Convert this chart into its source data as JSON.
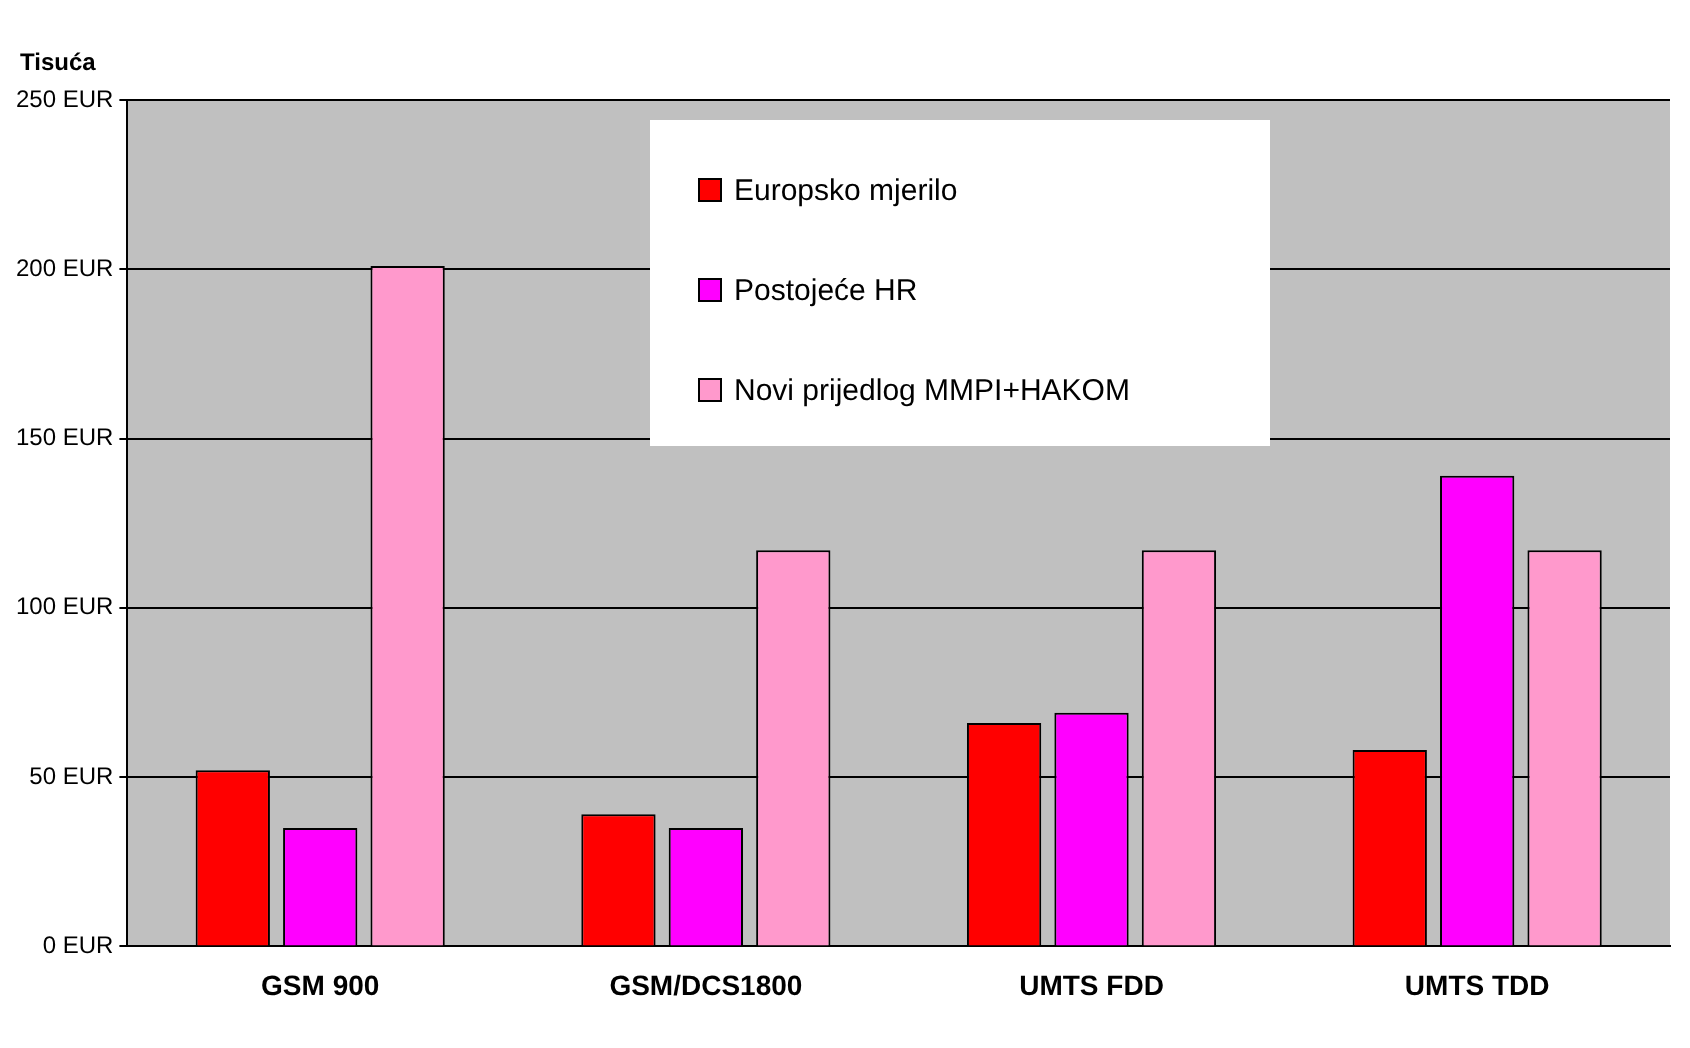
{
  "chart_data": {
    "type": "bar",
    "ylabel": "Tisuća",
    "categories": [
      "GSM 900",
      "GSM/DCS1800",
      "UMTS FDD",
      "UMTS TDD"
    ],
    "series": [
      {
        "name": "Europsko mjerilo",
        "color": "#ff0000",
        "values": [
          52,
          39,
          66,
          58
        ]
      },
      {
        "name": "Postojeće HR",
        "color": "#ff00ff",
        "values": [
          35,
          35,
          69,
          139
        ]
      },
      {
        "name": "Novi prijedlog MMPI+HAKOM",
        "color": "#ff99cc",
        "values": [
          201,
          117,
          117,
          117
        ]
      }
    ],
    "ylim": [
      0,
      250
    ],
    "yticks": [
      {
        "value": 0,
        "label": "0 EUR"
      },
      {
        "value": 50,
        "label": "50 EUR"
      },
      {
        "value": 100,
        "label": "100 EUR"
      },
      {
        "value": 150,
        "label": "150 EUR"
      },
      {
        "value": 200,
        "label": "200 EUR"
      },
      {
        "value": 250,
        "label": "250 EUR"
      }
    ],
    "grid": "y",
    "legend": "top"
  }
}
